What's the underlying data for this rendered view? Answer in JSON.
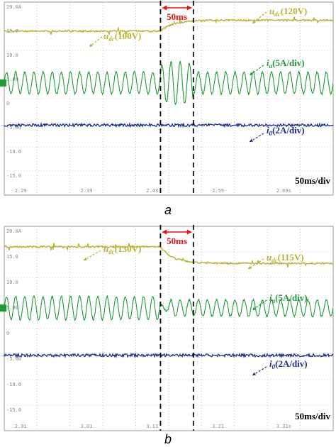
{
  "colors": {
    "udc": "#b8b232",
    "ia": "#1f9a36",
    "i0": "#1b2f8c",
    "grid": "#9a9a9a",
    "marker_red": "#ee1111",
    "scope_tick": "#888888"
  },
  "chart_data": [
    {
      "type": "line",
      "title": "",
      "caption": "a",
      "y_tick_labels": [
        "20.0A",
        "15.0",
        "10.0",
        "5.00",
        "0",
        "-5.00",
        "-10.0",
        "-15.0"
      ],
      "x_tick_labels": [
        "2.29",
        "2.39",
        "2.49",
        "2.59",
        "2.69s"
      ],
      "timebase": "50ms/div",
      "interval_label": "50ms",
      "transition": {
        "from_div": 4.75,
        "to_div": 5.75
      },
      "series": [
        {
          "key": "udc",
          "label_main": "u",
          "label_sub": "dc",
          "label_value": "(100V)",
          "level_div": 1.2,
          "level_after_div": 0.75
        },
        {
          "key": "udc2",
          "label_main": "u",
          "label_sub": "dc",
          "label_value": "(120V)"
        },
        {
          "key": "ia",
          "label_main": "i",
          "label_sub": "a",
          "label_value": "(5A/div)",
          "center_div": 3.35,
          "amp_div": 0.45,
          "cycles_per_div": 3.6
        },
        {
          "key": "i0",
          "label_main": "i",
          "label_sub": "0",
          "label_value": "(2A/div)",
          "level_div": 5.1
        }
      ]
    },
    {
      "type": "line",
      "title": "",
      "caption": "b",
      "y_tick_labels": [
        "20.0A",
        "15.0",
        "10.0",
        "5.00",
        "0",
        "-5.00",
        "-10.0",
        "-15.0"
      ],
      "x_tick_labels": [
        "2.91",
        "3.01",
        "3.11",
        "3.21",
        "3.31s"
      ],
      "timebase": "50ms/div",
      "interval_label": "50ms",
      "transition": {
        "from_div": 4.75,
        "to_div": 5.75
      },
      "series": [
        {
          "key": "udc",
          "label_main": "u",
          "label_sub": "dc",
          "label_value": "(130V)",
          "level_div": 0.8,
          "level_after_div": 1.45
        },
        {
          "key": "udc2",
          "label_main": "u",
          "label_sub": "dc",
          "label_value": "(115V)"
        },
        {
          "key": "ia",
          "label_main": "i",
          "label_sub": "a",
          "label_value": "(5A/div)",
          "center_div": 3.2,
          "amp_div": 0.45,
          "cycles_per_div": 3.6
        },
        {
          "key": "i0",
          "label_main": "i",
          "label_sub": "0",
          "label_value": "(2A/div)",
          "level_div": 5.05
        }
      ]
    }
  ]
}
